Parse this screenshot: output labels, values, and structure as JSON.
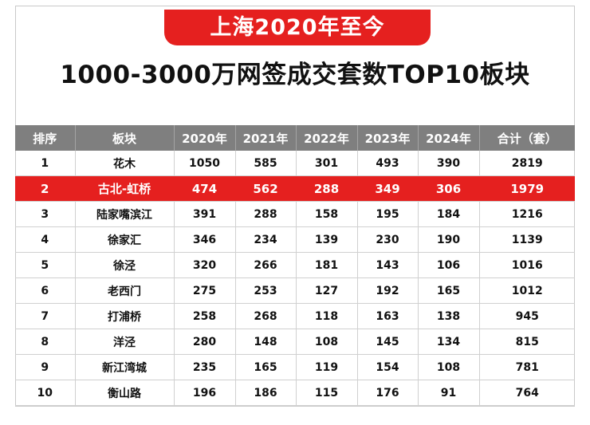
{
  "banner_text": "上海2020年至今",
  "headline_text": "1000-3000万网签成交套数TOP10板块",
  "columns": [
    "排序",
    "板块",
    "2020年",
    "2021年",
    "2022年",
    "2023年",
    "2024年",
    "合计（套）"
  ],
  "highlight_color": "#e5201f",
  "header_color": "#7f7f7f",
  "rows": [
    {
      "rank": "1",
      "area": "花木",
      "y2020": "1050",
      "y2021": "585",
      "y2022": "301",
      "y2023": "493",
      "y2024": "390",
      "total": "2819",
      "highlighted": false
    },
    {
      "rank": "2",
      "area": "古北-虹桥",
      "y2020": "474",
      "y2021": "562",
      "y2022": "288",
      "y2023": "349",
      "y2024": "306",
      "total": "1979",
      "highlighted": true
    },
    {
      "rank": "3",
      "area": "陆家嘴滨江",
      "y2020": "391",
      "y2021": "288",
      "y2022": "158",
      "y2023": "195",
      "y2024": "184",
      "total": "1216",
      "highlighted": false
    },
    {
      "rank": "4",
      "area": "徐家汇",
      "y2020": "346",
      "y2021": "234",
      "y2022": "139",
      "y2023": "230",
      "y2024": "190",
      "total": "1139",
      "highlighted": false
    },
    {
      "rank": "5",
      "area": "徐泾",
      "y2020": "320",
      "y2021": "266",
      "y2022": "181",
      "y2023": "143",
      "y2024": "106",
      "total": "1016",
      "highlighted": false
    },
    {
      "rank": "6",
      "area": "老西门",
      "y2020": "275",
      "y2021": "253",
      "y2022": "127",
      "y2023": "192",
      "y2024": "165",
      "total": "1012",
      "highlighted": false
    },
    {
      "rank": "7",
      "area": "打浦桥",
      "y2020": "258",
      "y2021": "268",
      "y2022": "118",
      "y2023": "163",
      "y2024": "138",
      "total": "945",
      "highlighted": false
    },
    {
      "rank": "8",
      "area": "洋泾",
      "y2020": "280",
      "y2021": "148",
      "y2022": "108",
      "y2023": "145",
      "y2024": "134",
      "total": "815",
      "highlighted": false
    },
    {
      "rank": "9",
      "area": "新江湾城",
      "y2020": "235",
      "y2021": "165",
      "y2022": "119",
      "y2023": "154",
      "y2024": "108",
      "total": "781",
      "highlighted": false
    },
    {
      "rank": "10",
      "area": "衡山路",
      "y2020": "196",
      "y2021": "186",
      "y2022": "115",
      "y2023": "176",
      "y2024": "91",
      "total": "764",
      "highlighted": false
    }
  ]
}
